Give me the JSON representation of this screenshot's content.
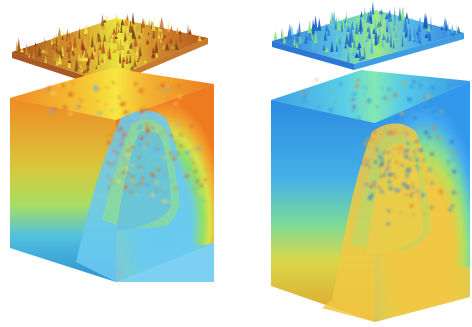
{
  "figure": {
    "panels": [
      {
        "name": "left-volume",
        "colormap": {
          "surface_low": "#b8561f",
          "surface_high": "#f4e23a",
          "top_outer": "#f28a22",
          "top_mid": "#f8d73a",
          "top_ridge": "#72c7ea",
          "side_top": "#f08a24",
          "side_mid": "#cfe24f",
          "side_low": "#4fbfe0",
          "side_bottom": "#2f93d2",
          "front_core": "#67c7ee",
          "front_band": "#8ee06a",
          "front_outer": "#f3a22d"
        }
      },
      {
        "name": "right-volume",
        "colormap": {
          "surface_low": "#1f6ed1",
          "surface_high": "#8ee86d",
          "top_outer": "#48a4ea",
          "top_mid": "#72e6bf",
          "top_ridge": "#f0c43d",
          "side_top": "#3f9fe7",
          "side_mid": "#9be27e",
          "side_low": "#f2d34a",
          "side_bottom": "#e0a12b",
          "front_core": "#f1c842",
          "front_band": "#9be17a",
          "front_outer": "#45aaf0"
        }
      }
    ]
  }
}
